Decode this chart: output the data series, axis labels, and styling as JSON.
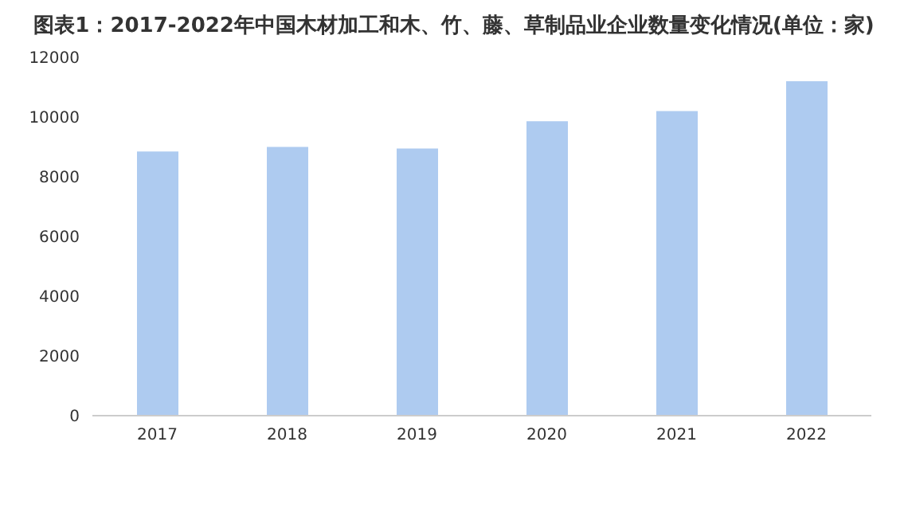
{
  "chart_data": {
    "type": "bar",
    "title": "图表1：2017-2022年中国木材加工和木、竹、藤、草制品业企业数量变化情况(单位：家)",
    "categories": [
      "2017",
      "2018",
      "2019",
      "2020",
      "2021",
      "2022"
    ],
    "values": [
      8850,
      9000,
      8950,
      9860,
      10200,
      11200
    ],
    "color": "#aecbf0",
    "ylim": [
      0,
      12000
    ],
    "yticks": [
      0,
      2000,
      4000,
      6000,
      8000,
      10000,
      12000
    ],
    "grid": false
  }
}
